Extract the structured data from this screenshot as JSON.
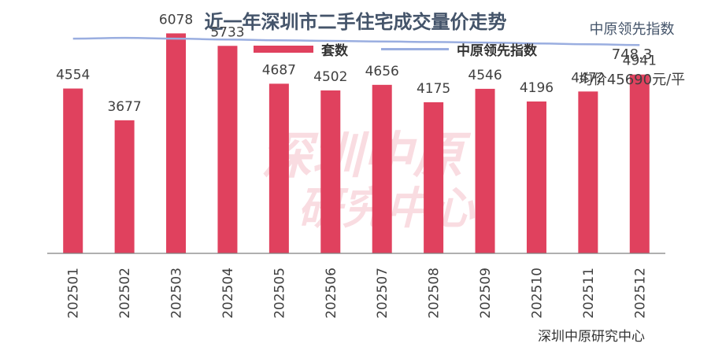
{
  "chart_data": {
    "type": "bar",
    "title": "近一年深圳市二手住宅成交量价走势",
    "categories": [
      "202501",
      "202502",
      "202503",
      "202504",
      "202505",
      "202506",
      "202507",
      "202508",
      "202509",
      "202510",
      "202511",
      "202512"
    ],
    "series": [
      {
        "name": "套数",
        "type": "bar",
        "color": "#e0415e",
        "values": [
          4554,
          3677,
          6078,
          5733,
          4687,
          4502,
          4656,
          4175,
          4546,
          4196,
          4472,
          4941
        ],
        "labels": [
          "4554",
          "3677",
          "6078",
          "5733",
          "4687",
          "4502",
          "4656",
          "4175",
          "4546",
          "4196",
          "4472",
          "4941"
        ]
      },
      {
        "name": "中原领先指数",
        "type": "line",
        "color": "#9aaee0",
        "values": [
          771,
          774,
          771,
          768,
          765,
          763,
          761,
          759,
          757,
          754,
          751,
          748.3
        ]
      }
    ],
    "ylim": [
      0,
      7000
    ],
    "line_ylim": [
      0,
      910
    ],
    "grid": false,
    "legend_position": "top-center"
  },
  "info": {
    "index_label": "中原领先指数",
    "index_value": "748.3",
    "avg_price": "均价45690元/平"
  },
  "watermark": "深圳中原研究中心",
  "footer": "深圳中原研究中心"
}
